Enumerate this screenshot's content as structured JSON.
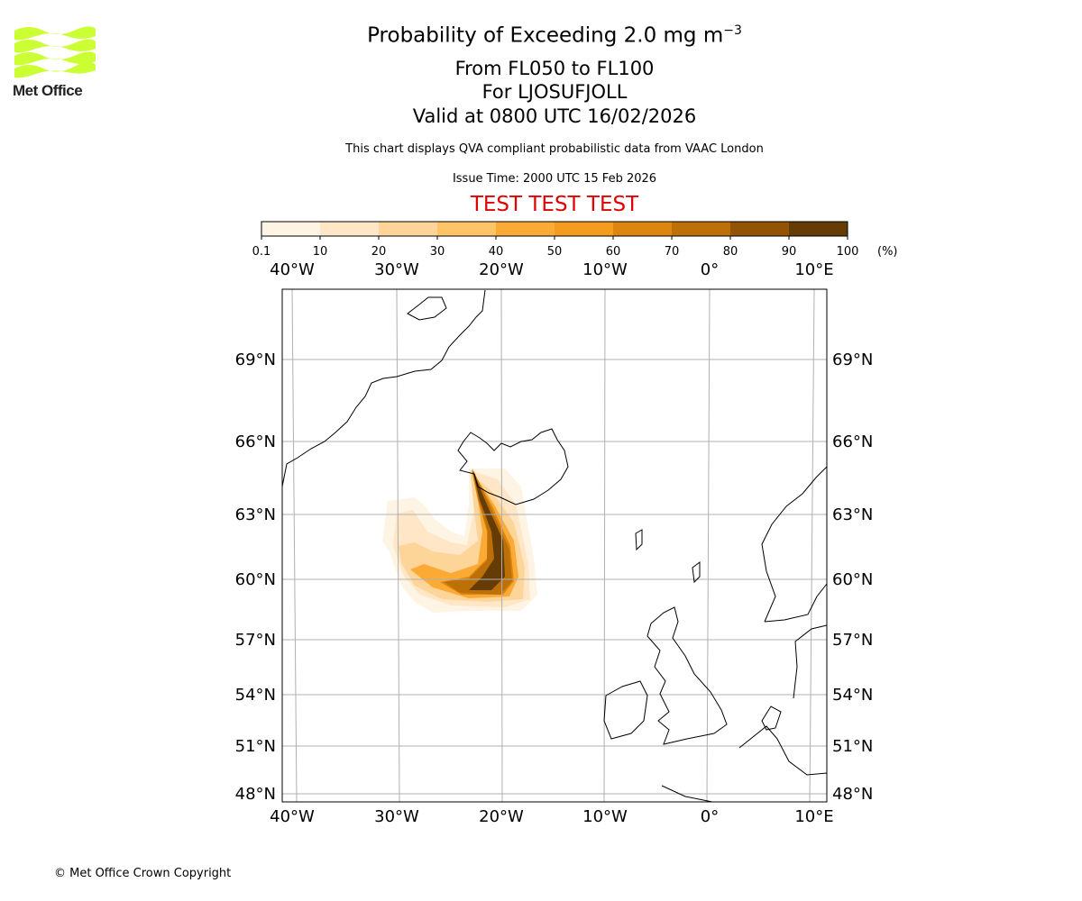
{
  "header": {
    "title": "Probability of Exceeding 2.0 mg m",
    "title_superscript": "−3",
    "level_range": "From FL050 to FL100",
    "volcano": "For LJOSUFJOLL",
    "valid_time": "Valid at 0800 UTC 16/02/2026",
    "description": "This chart displays QVA compliant probabilistic data from VAAC London",
    "issue_time": "Issue Time: 2000 UTC 15 Feb 2026",
    "test_banner": "TEST TEST TEST"
  },
  "logo": {
    "text": "Met Office",
    "color": "#ccff33"
  },
  "footer": {
    "copyright": "© Met Office Crown Copyright"
  },
  "chart_data": {
    "type": "heatmap",
    "title": "Probability of Exceeding 2.0 mg m-3",
    "colorbar": {
      "tick_labels": [
        "0.1",
        "10",
        "20",
        "30",
        "40",
        "50",
        "60",
        "70",
        "80",
        "90",
        "100"
      ],
      "unit": "(%)",
      "colors": [
        "#fef4e4",
        "#fee6c7",
        "#fed598",
        "#fec467",
        "#fbaa35",
        "#f39c1e",
        "#dc860f",
        "#bd6f08",
        "#925404",
        "#653c05"
      ]
    },
    "lon_ticks": [
      "40°W",
      "30°W",
      "20°W",
      "10°W",
      "0°",
      "10°E"
    ],
    "lat_ticks": [
      "69°N",
      "66°N",
      "63°N",
      "60°N",
      "57°N",
      "54°N",
      "51°N",
      "48°N"
    ],
    "grid": true,
    "plume": {
      "source": "Iceland (approx. 64.5N, 22W)",
      "max_probability_region": "60-64N, 19-22W",
      "extent_lat": [
        58.5,
        65
      ],
      "extent_lon": [
        -32,
        -16
      ]
    }
  }
}
